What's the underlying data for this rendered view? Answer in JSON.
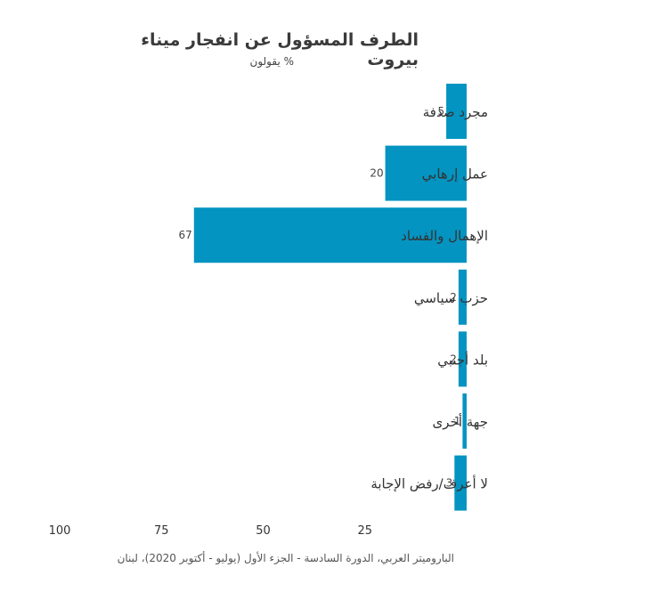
{
  "chart_data": {
    "type": "bar",
    "orientation": "horizontal",
    "title": "الطرف المسؤول عن انفجار ميناء بيروت",
    "subtitle": "% يقولون",
    "categories": [
      "مجرد صدفة",
      "عمل إرهابي",
      "الإهمال والفساد",
      "حزب سياسي",
      "بلد أجنبي",
      "جهة أخرى",
      "لا أعرف/رفض الإجابة"
    ],
    "values": [
      5,
      20,
      67,
      2,
      2,
      1,
      3
    ],
    "x_ticks": [
      100,
      75,
      50,
      25
    ],
    "xlim": [
      0,
      100
    ],
    "x_reversed": true,
    "grid": false,
    "bar_color": "#0494c1",
    "source": "الباروميتر العربي، الدورة السادسة - الجزء الأول (يوليو - أكتوبر 2020)،  لبنان"
  }
}
